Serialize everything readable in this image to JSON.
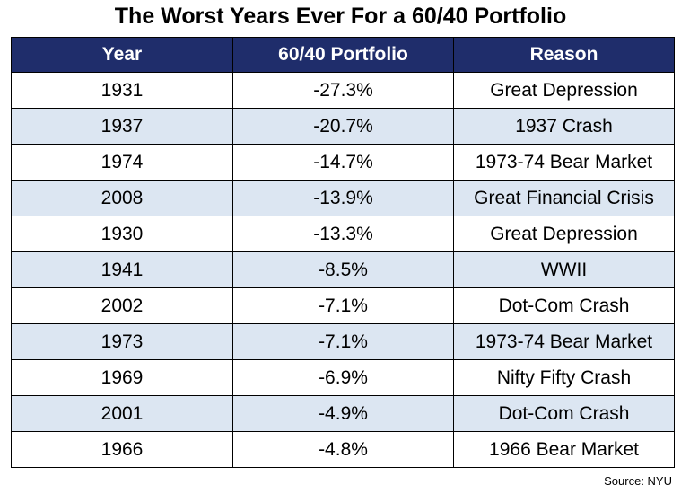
{
  "title": "The Worst Years Ever For a 60/40 Portfolio",
  "source": "Source: NYU",
  "colors": {
    "header_bg": "#1f2d6b",
    "header_text": "#ffffff",
    "alt_row": "#dce6f2",
    "row": "#ffffff"
  },
  "chart_data": {
    "type": "table",
    "title": "The Worst Years Ever For a 60/40 Portfolio",
    "columns": [
      "Year",
      "60/40 Portfolio",
      "Reason"
    ],
    "rows": [
      [
        "1931",
        "-27.3%",
        "Great Depression"
      ],
      [
        "1937",
        "-20.7%",
        "1937 Crash"
      ],
      [
        "1974",
        "-14.7%",
        "1973-74 Bear Market"
      ],
      [
        "2008",
        "-13.9%",
        "Great Financial Crisis"
      ],
      [
        "1930",
        "-13.3%",
        "Great Depression"
      ],
      [
        "1941",
        "-8.5%",
        "WWII"
      ],
      [
        "2002",
        "-7.1%",
        "Dot-Com Crash"
      ],
      [
        "1973",
        "-7.1%",
        "1973-74 Bear Market"
      ],
      [
        "1969",
        "-6.9%",
        "Nifty Fifty Crash"
      ],
      [
        "2001",
        "-4.9%",
        "Dot-Com Crash"
      ],
      [
        "1966",
        "-4.8%",
        "1966 Bear Market"
      ]
    ],
    "source": "Source: NYU"
  }
}
